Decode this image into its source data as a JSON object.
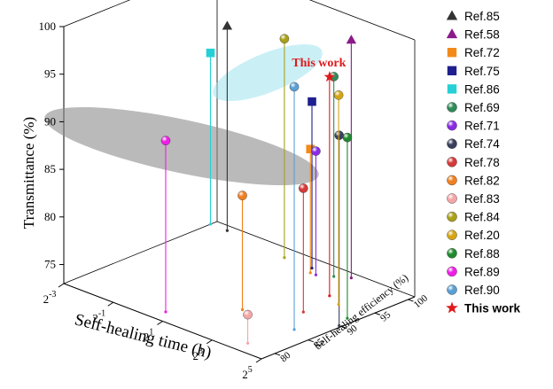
{
  "chart_data": {
    "type": "scatter",
    "subtype": "3d-drop-line",
    "xlabel": "Self-healing time (h)",
    "ylabel": "Transmittance (%)",
    "zlabel": "Self-healing efficiency (%)",
    "x_scale": "log2",
    "x_ticks": [
      {
        "value": 0.125,
        "base": "2",
        "exp": "-3"
      },
      {
        "value": 0.5,
        "base": "2",
        "exp": "-1"
      },
      {
        "value": 2,
        "base": "2",
        "exp": "1"
      },
      {
        "value": 8,
        "base": "2",
        "exp": "3"
      },
      {
        "value": 32,
        "base": "2",
        "exp": "5"
      }
    ],
    "y_ticks": [
      75,
      80,
      85,
      90,
      95,
      100
    ],
    "z_ticks": [
      80,
      85,
      90,
      95,
      100
    ],
    "y_range": [
      73,
      100
    ],
    "grid": false,
    "legend_position": "right",
    "series": [
      {
        "name": "Ref.85",
        "marker": "triangle",
        "color": "#333333",
        "x": 0.2,
        "y": 94.5,
        "z": 100
      },
      {
        "name": "Ref.58",
        "marker": "triangle",
        "color": "#8b1a8b",
        "x": 6.5,
        "y": 98,
        "z": 100
      },
      {
        "name": "Ref.72",
        "marker": "square",
        "color": "#f28a1a",
        "x": 3.0,
        "y": 86,
        "z": 98
      },
      {
        "name": "Ref.75",
        "marker": "square",
        "color": "#1f1f8f",
        "x": 2.6,
        "y": 90.5,
        "z": 99
      },
      {
        "name": "Ref.86",
        "marker": "square",
        "color": "#25d0d6",
        "x": 0.125,
        "y": 91,
        "z": 100
      },
      {
        "name": "Ref.69",
        "marker": "sphere",
        "color": "#2e8b57",
        "x": 4.8,
        "y": 94,
        "z": 99
      },
      {
        "name": "Ref.71",
        "marker": "sphere",
        "color": "#8a2be2",
        "x": 3.5,
        "y": 86,
        "z": 98
      },
      {
        "name": "Ref.74",
        "marker": "sphere",
        "color": "#3a3f5c",
        "x": 30,
        "y": 93,
        "z": 90
      },
      {
        "name": "Ref.78",
        "marker": "sphere",
        "color": "#d43a3a",
        "x": 11,
        "y": 86,
        "z": 90
      },
      {
        "name": "Ref.82",
        "marker": "sphere",
        "color": "#f07f1f",
        "x": 4.2,
        "y": 85,
        "z": 86
      },
      {
        "name": "Ref.83",
        "marker": "sphere",
        "color": "#f4a6a6",
        "x": 15,
        "y": 76,
        "z": 80
      },
      {
        "name": "Ref.84",
        "marker": "sphere",
        "color": "#a9a019",
        "x": 1.2,
        "y": 96,
        "z": 99
      },
      {
        "name": "Ref.20",
        "marker": "sphere",
        "color": "#d4a514",
        "x": 14,
        "y": 95,
        "z": 94
      },
      {
        "name": "Ref.88",
        "marker": "sphere",
        "color": "#1f8a2e",
        "x": 26,
        "y": 92,
        "z": 92
      },
      {
        "name": "Ref.89",
        "marker": "sphere",
        "color": "#ee1ee6",
        "x": 1.5,
        "y": 91,
        "z": 80
      },
      {
        "name": "Ref.90",
        "marker": "sphere",
        "color": "#5a9fd4",
        "x": 18,
        "y": 98.5,
        "z": 86
      },
      {
        "name": "This work",
        "marker": "star",
        "color": "#e0191b",
        "x": 9,
        "y": 96,
        "z": 95,
        "annotation": "This work"
      }
    ]
  }
}
